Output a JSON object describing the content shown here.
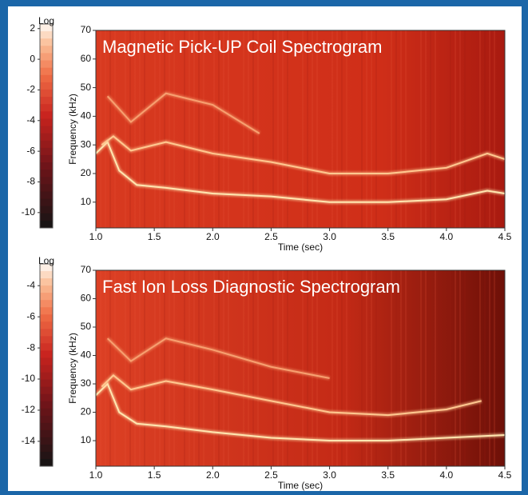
{
  "chart_data": [
    {
      "type": "spectrogram",
      "title": "Magnetic Pick-UP Coil Spectrogram",
      "xlabel": "Time (sec)",
      "ylabel": "Frequency (kHz)",
      "colorbar_label": "Log",
      "clim": [
        -11,
        2.3
      ],
      "colorbar_ticks": [
        2,
        0,
        -2,
        -4,
        -6,
        -8,
        -10
      ],
      "xlim": [
        1,
        4.5
      ],
      "xticks": [
        {
          "value": 1,
          "label": "1.0"
        },
        1.5,
        {
          "value": 2,
          "label": "2.0"
        },
        2.5,
        {
          "value": 3,
          "label": "3.0"
        },
        3.5,
        {
          "value": 4,
          "label": "4.0"
        },
        4.5
      ],
      "ylim": [
        1,
        70
      ],
      "yticks": [
        10,
        20,
        30,
        40,
        50,
        60,
        70
      ],
      "series": [
        {
          "color": "#ffe6b0",
          "x": [
            1.0,
            1.1,
            1.2,
            1.35,
            1.6,
            2.0,
            2.5,
            3.0,
            3.5,
            4.0,
            4.35,
            4.5
          ],
          "values": [
            27,
            31,
            21,
            16,
            15,
            13,
            12,
            10,
            10,
            11,
            14,
            13
          ]
        },
        {
          "color": "#ffc890",
          "x": [
            1.05,
            1.15,
            1.3,
            1.6,
            2.0,
            2.5,
            3.0,
            3.5,
            4.0,
            4.35,
            4.5
          ],
          "values": [
            30,
            33,
            28,
            31,
            27,
            24,
            20,
            20,
            22,
            27,
            25
          ]
        },
        {
          "color": "#f7a070",
          "x": [
            1.1,
            1.3,
            1.6,
            2.0,
            2.4
          ],
          "values": [
            47,
            38,
            48,
            44,
            34
          ]
        }
      ]
    },
    {
      "type": "spectrogram",
      "title": "Fast Ion Loss Diagnostic Spectrogram",
      "xlabel": "Time (sec)",
      "ylabel": "Frequency (kHz)",
      "colorbar_label": "Log",
      "clim": [
        -15.6,
        -2.6
      ],
      "colorbar_ticks": [
        -4,
        -6,
        -8,
        -10,
        -12,
        -14
      ],
      "xlim": [
        1,
        4.5
      ],
      "xticks": [
        {
          "value": 1,
          "label": "1.0"
        },
        1.5,
        {
          "value": 2,
          "label": "2.0"
        },
        2.5,
        {
          "value": 3,
          "label": "3.0"
        },
        3.5,
        {
          "value": 4,
          "label": "4.0"
        },
        4.5
      ],
      "ylim": [
        1,
        70
      ],
      "yticks": [
        10,
        20,
        30,
        40,
        50,
        60,
        70
      ],
      "series": [
        {
          "color": "#ffe6b0",
          "x": [
            1.0,
            1.1,
            1.2,
            1.35,
            1.6,
            2.0,
            2.5,
            3.0,
            3.5,
            4.0,
            4.5
          ],
          "values": [
            26,
            30,
            20,
            16,
            15,
            13,
            11,
            10,
            10,
            11,
            12
          ]
        },
        {
          "color": "#ffc890",
          "x": [
            1.05,
            1.15,
            1.3,
            1.6,
            2.0,
            2.5,
            3.0,
            3.5,
            4.0,
            4.3
          ],
          "values": [
            29,
            33,
            28,
            31,
            28,
            24,
            20,
            19,
            21,
            24
          ]
        },
        {
          "color": "#f7a070",
          "x": [
            1.1,
            1.3,
            1.6,
            2.0,
            2.5,
            3.0
          ],
          "values": [
            46,
            38,
            46,
            42,
            36,
            32
          ]
        }
      ]
    }
  ]
}
